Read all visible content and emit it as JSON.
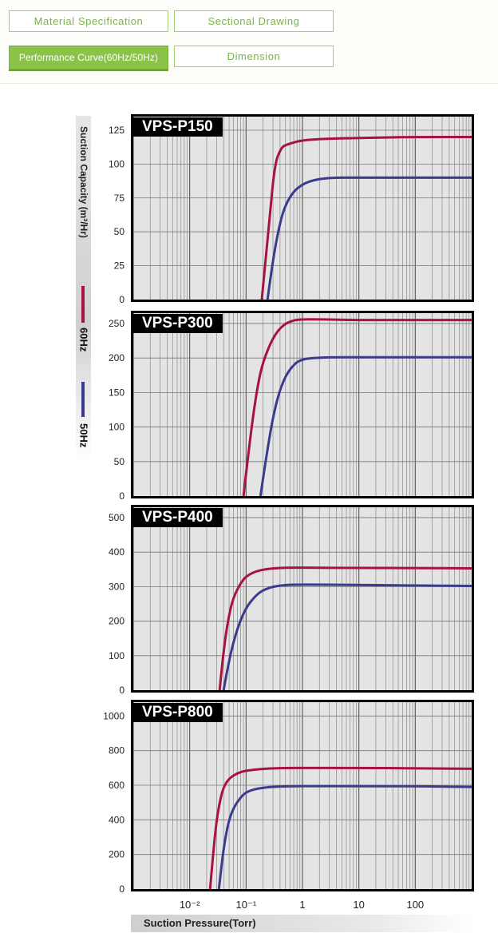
{
  "tabs": [
    {
      "label": "Material Specification"
    },
    {
      "label": "Sectional Drawing"
    },
    {
      "label": "Performance Curve(60Hz/50Hz)"
    },
    {
      "label": "Dimension"
    }
  ],
  "y_axis_title": "Suction Capacity (m³/Hr)",
  "x_axis_title": "Suction Pressure(Torr)",
  "legend": [
    {
      "label": "60Hz",
      "color": "#a8123e"
    },
    {
      "label": "50Hz",
      "color": "#3b3b8e"
    }
  ],
  "chart_data": [
    {
      "type": "line",
      "title": "VPS-P150",
      "xlabel": "Suction Pressure(Torr)",
      "ylabel": "Suction Capacity (m³/Hr)",
      "x_scale": "log",
      "xlim": [
        0.001,
        1000
      ],
      "ylim": [
        0,
        135
      ],
      "yticks": [
        "0",
        "25",
        "50",
        "75",
        "100",
        "125"
      ],
      "series": [
        {
          "name": "60Hz",
          "color": "#a8123e",
          "x": [
            0.19,
            0.25,
            0.32,
            0.42,
            0.5,
            0.7,
            1.0,
            2,
            5,
            20,
            100,
            1000
          ],
          "y": [
            0,
            50,
            100,
            112,
            114,
            116,
            117.5,
            118.5,
            119,
            119.5,
            120,
            120
          ]
        },
        {
          "name": "50Hz",
          "color": "#3b3b8e",
          "x": [
            0.24,
            0.3,
            0.4,
            0.5,
            0.7,
            1.0,
            1.5,
            3,
            10,
            100,
            1000
          ],
          "y": [
            0,
            30,
            57,
            70,
            80,
            85,
            88,
            90,
            90,
            90,
            90
          ]
        }
      ]
    },
    {
      "type": "line",
      "title": "VPS-P300",
      "xlabel": "Suction Pressure(Torr)",
      "ylabel": "Suction Capacity (m³/Hr)",
      "x_scale": "log",
      "xlim": [
        0.001,
        1000
      ],
      "ylim": [
        0,
        265
      ],
      "yticks": [
        "0",
        "50",
        "100",
        "150",
        "200",
        "250"
      ],
      "series": [
        {
          "name": "60Hz",
          "color": "#a8123e",
          "x": [
            0.09,
            0.12,
            0.16,
            0.2,
            0.3,
            0.45,
            0.7,
            1,
            2,
            10,
            100,
            1000
          ],
          "y": [
            0,
            90,
            160,
            195,
            230,
            248,
            255,
            256,
            256,
            255,
            255,
            255
          ]
        },
        {
          "name": "50Hz",
          "color": "#3b3b8e",
          "x": [
            0.18,
            0.25,
            0.35,
            0.5,
            0.75,
            1.0,
            1.5,
            3,
            10,
            100,
            1000
          ],
          "y": [
            0,
            80,
            140,
            175,
            193,
            198,
            200,
            201,
            201,
            201,
            201
          ]
        }
      ]
    },
    {
      "type": "line",
      "title": "VPS-P400",
      "xlabel": "Suction Pressure(Torr)",
      "ylabel": "Suction Capacity (m³/Hr)",
      "x_scale": "log",
      "xlim": [
        0.001,
        1000
      ],
      "ylim": [
        0,
        530
      ],
      "yticks": [
        "0",
        "100",
        "200",
        "300",
        "400",
        "500"
      ],
      "series": [
        {
          "name": "60Hz",
          "color": "#a8123e",
          "x": [
            0.034,
            0.04,
            0.05,
            0.06,
            0.08,
            0.1,
            0.15,
            0.25,
            0.5,
            1,
            10,
            100,
            1000
          ],
          "y": [
            0,
            120,
            220,
            270,
            310,
            330,
            345,
            352,
            355,
            355,
            354,
            354,
            353
          ]
        },
        {
          "name": "50Hz",
          "color": "#3b3b8e",
          "x": [
            0.04,
            0.05,
            0.07,
            0.1,
            0.15,
            0.2,
            0.3,
            0.5,
            1,
            10,
            100,
            1000
          ],
          "y": [
            0,
            90,
            180,
            240,
            275,
            290,
            300,
            305,
            306,
            305,
            303,
            302
          ]
        }
      ]
    },
    {
      "type": "line",
      "title": "VPS-P800",
      "xlabel": "Suction Pressure(Torr)",
      "ylabel": "Suction Capacity (m³/Hr)",
      "x_scale": "log",
      "xlim": [
        0.001,
        1000
      ],
      "ylim": [
        0,
        1080
      ],
      "xticks": [
        "10⁻²",
        "10⁻¹",
        "1",
        "10",
        "100"
      ],
      "yticks": [
        "0",
        "200",
        "400",
        "600",
        "800",
        "1000"
      ],
      "series": [
        {
          "name": "60Hz",
          "color": "#a8123e",
          "x": [
            0.023,
            0.026,
            0.03,
            0.035,
            0.04,
            0.05,
            0.07,
            0.1,
            0.2,
            0.5,
            1,
            10,
            100,
            1000
          ],
          "y": [
            0,
            200,
            400,
            520,
            590,
            640,
            670,
            685,
            695,
            700,
            700,
            700,
            698,
            695
          ]
        },
        {
          "name": "50Hz",
          "color": "#3b3b8e",
          "x": [
            0.033,
            0.037,
            0.043,
            0.05,
            0.06,
            0.08,
            0.1,
            0.15,
            0.3,
            1,
            10,
            100,
            1000
          ],
          "y": [
            0,
            150,
            300,
            400,
            470,
            530,
            560,
            580,
            592,
            595,
            595,
            594,
            590
          ]
        }
      ]
    }
  ]
}
